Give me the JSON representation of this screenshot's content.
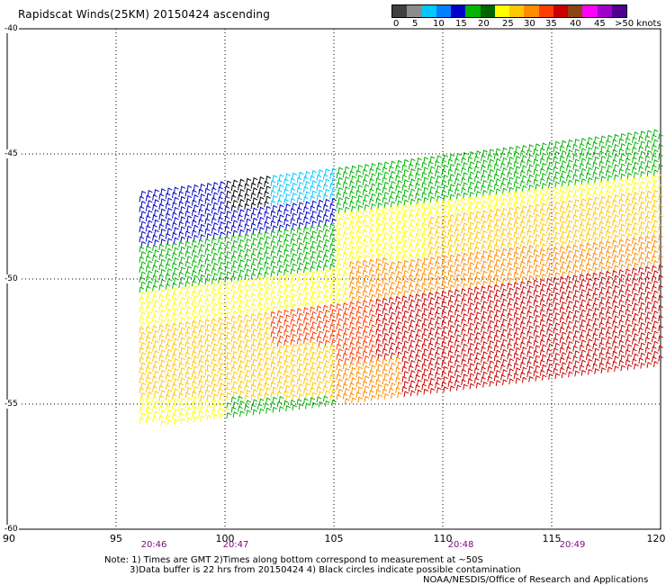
{
  "title": "Rapidscat Winds(25KM) 20150424 ascending",
  "colorbar": {
    "colors": [
      "#404040",
      "#8c8c8c",
      "#00c8ff",
      "#0080ff",
      "#0000c8",
      "#00b400",
      "#006400",
      "#ffff00",
      "#ffc800",
      "#ff8c00",
      "#ff3c00",
      "#c80000",
      "#8b4513",
      "#ff00ff",
      "#a000c8",
      "#500090"
    ],
    "labels": [
      "0",
      "5",
      "10",
      "15",
      "20",
      "25",
      "30",
      "35",
      "40",
      "45",
      ">50 knots"
    ]
  },
  "axes": {
    "lat_labels": [
      "-40",
      "-45",
      "-50",
      "-55",
      "-60"
    ],
    "lon_labels": [
      "90",
      "95",
      "100",
      "105",
      "110",
      "115",
      "120"
    ],
    "time_labels": [
      "20:46",
      "20:47",
      "20:48",
      "20:49"
    ]
  },
  "notes": {
    "line1": "Note: 1) Times are GMT 2)Times along bottom correspond to measurement at ~50S",
    "line2": "3)Data buffer is 22 hrs from 20150424 4) Black circles indicate possible contamination",
    "line3": "NOAA/NESDIS/Office of Research and Applications"
  },
  "map_data": {
    "lon_range": [
      90,
      120
    ],
    "lat_range": [
      -60,
      -40
    ],
    "grid": "dotted",
    "wind_barb_colors": {
      "calm": "#000000",
      "low": "#00c8ff",
      "light": "#0000c8",
      "moderate": "#00b400",
      "fresh": "#006400",
      "strong": "#ffff00",
      "gale": "#ffc800",
      "severe": "#ff8c00",
      "storm": "#ff3c00",
      "violent": "#c80000"
    }
  }
}
